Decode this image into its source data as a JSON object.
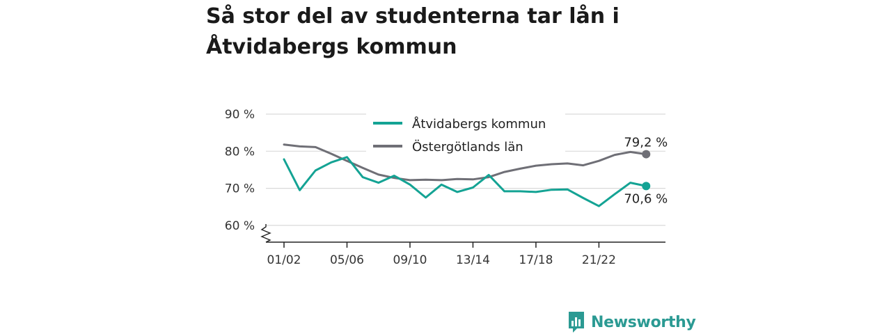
{
  "title": "Så stor del av studenterna tar lån i Åtvidabergs kommun",
  "logo": {
    "text": "Newsworthy",
    "icon": "newsworthy-chart-icon"
  },
  "colors": {
    "series_kommun": "#14a394",
    "series_lan": "#6f6f76",
    "grid": "#d9d9d9",
    "axis": "#222222"
  },
  "chart_data": {
    "type": "line",
    "x_tick_labels": [
      "01/02",
      "05/06",
      "09/10",
      "13/14",
      "17/18",
      "21/22"
    ],
    "x": [
      "01/02",
      "02/03",
      "03/04",
      "04/05",
      "05/06",
      "06/07",
      "07/08",
      "08/09",
      "09/10",
      "10/11",
      "11/12",
      "12/13",
      "13/14",
      "14/15",
      "15/16",
      "16/17",
      "17/18",
      "18/19",
      "19/20",
      "20/21",
      "21/22",
      "22/23",
      "23/24",
      "24/25"
    ],
    "y_ticks": [
      "60 %",
      "70 %",
      "80 %",
      "90 %"
    ],
    "ylim": [
      55,
      90
    ],
    "y_axis_break": true,
    "grid": "horizontal",
    "legend_position": "top",
    "series": [
      {
        "name": "Åtvidabergs kommun",
        "values": [
          77.8,
          69.5,
          74.8,
          77.0,
          78.4,
          73.0,
          71.5,
          73.4,
          71.0,
          67.5,
          71.0,
          69.0,
          70.2,
          73.6,
          69.2,
          69.2,
          69.0,
          69.6,
          69.7,
          67.4,
          65.2,
          68.4,
          71.5,
          70.6
        ],
        "end_label": "70,6 %"
      },
      {
        "name": "Östergötlands län",
        "values": [
          81.8,
          81.3,
          81.1,
          79.3,
          77.4,
          75.5,
          73.7,
          72.8,
          72.2,
          72.3,
          72.2,
          72.5,
          72.4,
          73.0,
          74.4,
          75.3,
          76.1,
          76.5,
          76.7,
          76.2,
          77.4,
          79.0,
          79.8,
          79.2
        ],
        "end_label": "79,2 %"
      }
    ]
  }
}
